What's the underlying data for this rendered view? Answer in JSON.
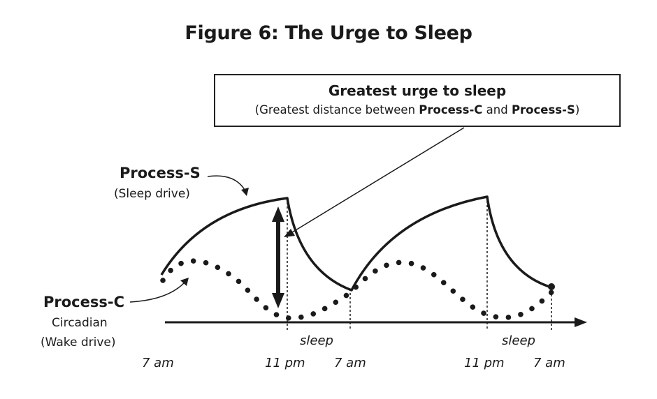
{
  "title": "Figure 6: The Urge to Sleep",
  "callout": {
    "title": "Greatest urge to sleep",
    "sub_prefix": "(Greatest distance between ",
    "sub_c": "Process-C",
    "sub_and": " and ",
    "sub_s": "Process-S",
    "sub_suffix": ")"
  },
  "process_s": {
    "name": "Process-S",
    "desc": "(Sleep drive)"
  },
  "process_c": {
    "name": "Process-C",
    "desc1": "Circadian",
    "desc2": "(Wake drive)"
  },
  "sleep_labels": [
    "sleep",
    "sleep"
  ],
  "time_labels": [
    "7 am",
    "11 pm",
    "7 am",
    "11 pm",
    "7 am"
  ],
  "colors": {
    "ink": "#1a1a1a",
    "background": "#ffffff"
  }
}
